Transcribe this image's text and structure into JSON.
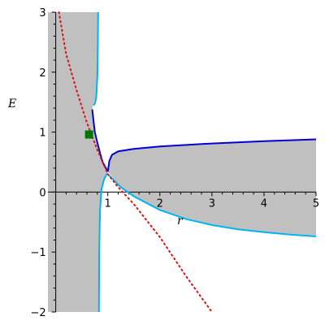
{
  "chart_data": {
    "type": "line",
    "xlabel": "r",
    "ylabel": "E",
    "xlim": [
      -0.15,
      5
    ],
    "ylim": [
      -2,
      3
    ],
    "x_ticks": [
      {
        "v": 1,
        "label": "1"
      },
      {
        "v": 2,
        "label": "2"
      },
      {
        "v": 3,
        "label": "3"
      },
      {
        "v": 4,
        "label": "4"
      },
      {
        "v": 5,
        "label": "5"
      }
    ],
    "y_ticks": [
      {
        "v": -2,
        "label": "−2"
      },
      {
        "v": -1,
        "label": "−1"
      },
      {
        "v": 0,
        "label": "0"
      },
      {
        "v": 1,
        "label": "1"
      },
      {
        "v": 2,
        "label": "2"
      },
      {
        "v": 3,
        "label": "3"
      }
    ],
    "colors": {
      "shade": "#c0c0c0",
      "light_blue": "#00b4f0",
      "dark_blue": "#0000d8",
      "red_dotted": "#e01010",
      "marker": "#007800"
    },
    "series": [
      {
        "key": "upper_light_blue",
        "style": "light_blue",
        "x": [
          0.72,
          0.74,
          0.76,
          0.78,
          0.8,
          0.81,
          0.815
        ],
        "y": [
          1.45,
          1.46,
          1.5,
          1.6,
          1.95,
          2.5,
          3.0
        ]
      },
      {
        "key": "left_dark_blue",
        "style": "dark_blue",
        "x": [
          0.7,
          0.75,
          0.8,
          0.85,
          0.9,
          0.95,
          1.0
        ],
        "y": [
          1.38,
          1.0,
          0.82,
          0.65,
          0.5,
          0.42,
          0.34
        ]
      },
      {
        "key": "upper_dark_blue",
        "style": "dark_blue",
        "x": [
          1.0,
          1.03,
          1.08,
          1.2,
          1.5,
          2.0,
          3.0,
          4.0,
          5.0
        ],
        "y": [
          0.34,
          0.52,
          0.62,
          0.68,
          0.72,
          0.76,
          0.81,
          0.85,
          0.88
        ]
      },
      {
        "key": "lower_light_blue",
        "style": "light_blue",
        "x": [
          1.0,
          1.25,
          1.5,
          2.0,
          2.5,
          3.0,
          3.5,
          4.0,
          4.5,
          5.0
        ],
        "y": [
          0.3,
          0.08,
          -0.07,
          -0.3,
          -0.45,
          -0.55,
          -0.62,
          -0.67,
          -0.71,
          -0.74
        ]
      },
      {
        "key": "vertical_light_blue",
        "style": "light_blue",
        "x": [
          0.83,
          0.835,
          0.85,
          0.88,
          0.93,
          0.98,
          1.0
        ],
        "y": [
          -2.0,
          -1.0,
          -0.3,
          0.05,
          0.22,
          0.3,
          0.31
        ]
      },
      {
        "key": "red_dotted",
        "style": "red_dotted",
        "x": [
          0.06,
          0.2,
          0.4,
          0.6,
          0.8,
          1.0,
          1.2,
          1.5,
          2.0,
          2.5,
          3.0
        ],
        "y": [
          3.0,
          2.3,
          1.7,
          1.15,
          0.7,
          0.3,
          0.08,
          -0.2,
          -0.75,
          -1.4,
          -2.0
        ]
      }
    ],
    "shaded_regions": [
      {
        "key": "left_region",
        "x": [
          -0.15,
          0.82,
          0.82,
          0.8,
          0.77,
          0.74,
          0.72,
          0.7,
          0.75,
          0.8,
          0.85,
          0.9,
          0.95,
          1.0,
          0.98,
          0.93,
          0.88,
          0.85,
          0.835,
          0.83,
          -0.15
        ],
        "y": [
          3.0,
          3.0,
          2.5,
          1.95,
          1.6,
          1.5,
          1.46,
          1.38,
          1.0,
          0.82,
          0.65,
          0.5,
          0.42,
          0.34,
          0.3,
          0.22,
          0.05,
          -0.3,
          -1.0,
          -2.0,
          -2.0
        ]
      },
      {
        "key": "right_region",
        "x": [
          1.0,
          1.03,
          1.08,
          1.2,
          1.5,
          2.0,
          3.0,
          4.0,
          5.0,
          5.0,
          4.5,
          4.0,
          3.5,
          3.0,
          2.5,
          2.0,
          1.5,
          1.25
        ],
        "y": [
          0.34,
          0.52,
          0.62,
          0.68,
          0.72,
          0.76,
          0.81,
          0.85,
          0.88,
          -0.74,
          -0.71,
          -0.67,
          -0.62,
          -0.55,
          -0.45,
          -0.3,
          -0.07,
          0.08
        ]
      }
    ],
    "markers": [
      {
        "x": 0.64,
        "y": 0.96,
        "shape": "square"
      }
    ],
    "grid": false,
    "legend": "none"
  }
}
